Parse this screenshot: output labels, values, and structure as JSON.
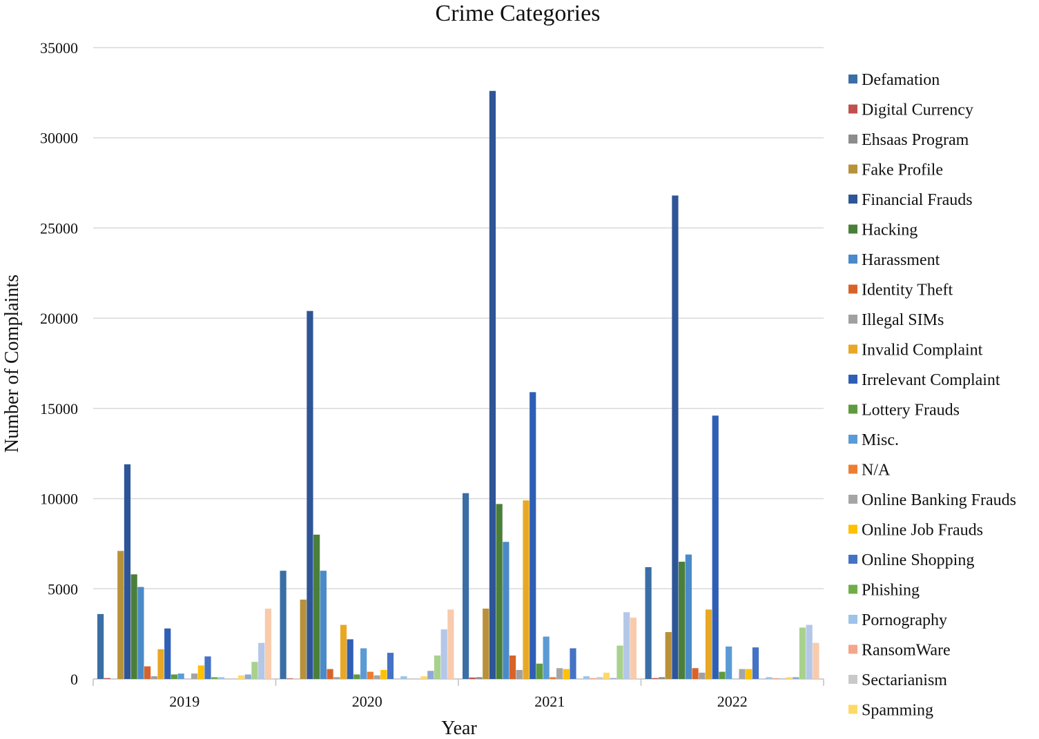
{
  "chart_data": {
    "type": "bar",
    "title": "Crime Categories",
    "xlabel": "Year",
    "ylabel": "Number of Complaints",
    "ylim": [
      0,
      35000
    ],
    "yticks": [
      0,
      5000,
      10000,
      15000,
      20000,
      25000,
      30000,
      35000
    ],
    "grid": true,
    "legend_position": "right",
    "categories": [
      "2019",
      "2020",
      "2021",
      "2022"
    ],
    "series": [
      {
        "name": "Defamation",
        "color": "#3a6ea5",
        "values": [
          3600,
          6000,
          10300,
          6200
        ]
      },
      {
        "name": "Digital Currency",
        "color": "#c0504d",
        "values": [
          50,
          30,
          80,
          50
        ]
      },
      {
        "name": "Ehsaas Program",
        "color": "#8c8c8c",
        "values": [
          0,
          0,
          100,
          100
        ]
      },
      {
        "name": "Fake Profile",
        "color": "#b8913a",
        "values": [
          7100,
          4400,
          3900,
          2600
        ]
      },
      {
        "name": "Financial Frauds",
        "color": "#2e5597",
        "values": [
          11900,
          20400,
          32600,
          26800
        ]
      },
      {
        "name": "Hacking",
        "color": "#4a7f3a",
        "values": [
          5800,
          8000,
          9700,
          6500
        ]
      },
      {
        "name": "Harassment",
        "color": "#4a8ac9",
        "values": [
          5100,
          6000,
          7600,
          6900
        ]
      },
      {
        "name": "Identity Theft",
        "color": "#d8632a",
        "values": [
          700,
          550,
          1300,
          600
        ]
      },
      {
        "name": "Illegal SIMs",
        "color": "#a0a0a0",
        "values": [
          150,
          100,
          500,
          350
        ]
      },
      {
        "name": "Invalid Complaint",
        "color": "#e8a825",
        "values": [
          1650,
          3000,
          9900,
          3850
        ]
      },
      {
        "name": "Irrelevant Complaint",
        "color": "#2f5fb5",
        "values": [
          2800,
          2200,
          15900,
          14600
        ]
      },
      {
        "name": "Lottery Frauds",
        "color": "#5e9a3e",
        "values": [
          250,
          250,
          850,
          400
        ]
      },
      {
        "name": "Misc.",
        "color": "#5b9bd5",
        "values": [
          300,
          1700,
          2350,
          1800
        ]
      },
      {
        "name": "N/A",
        "color": "#ed7d31",
        "values": [
          0,
          400,
          100,
          0
        ]
      },
      {
        "name": "Online Banking Frauds",
        "color": "#a5a5a5",
        "values": [
          300,
          200,
          600,
          550
        ]
      },
      {
        "name": "Online Job Frauds",
        "color": "#ffc000",
        "values": [
          750,
          500,
          550,
          550
        ]
      },
      {
        "name": "Online Shopping",
        "color": "#4472c4",
        "values": [
          1250,
          1450,
          1700,
          1750
        ]
      },
      {
        "name": "Phishing",
        "color": "#70ad47",
        "values": [
          100,
          0,
          0,
          0
        ]
      },
      {
        "name": "Pornography",
        "color": "#9dc3e6",
        "values": [
          100,
          150,
          150,
          100
        ]
      },
      {
        "name": "RansomWare",
        "color": "#f4a58a",
        "values": [
          0,
          0,
          50,
          50
        ]
      },
      {
        "name": "Sectarianism",
        "color": "#c9c9c9",
        "values": [
          0,
          0,
          100,
          50
        ]
      },
      {
        "name": "Spamming",
        "color": "#ffd966",
        "values": [
          200,
          150,
          350,
          100
        ]
      },
      {
        "name": "",
        "color": "#8fa8d8",
        "values": [
          250,
          450,
          50,
          100
        ]
      },
      {
        "name": "",
        "color": "#a9d18e",
        "values": [
          950,
          1300,
          1850,
          2850
        ]
      },
      {
        "name": "",
        "color": "#b4c7e7",
        "values": [
          2000,
          2750,
          3700,
          3000
        ]
      },
      {
        "name": "",
        "color": "#f8cbad",
        "values": [
          3900,
          3850,
          3400,
          2000
        ]
      }
    ]
  }
}
